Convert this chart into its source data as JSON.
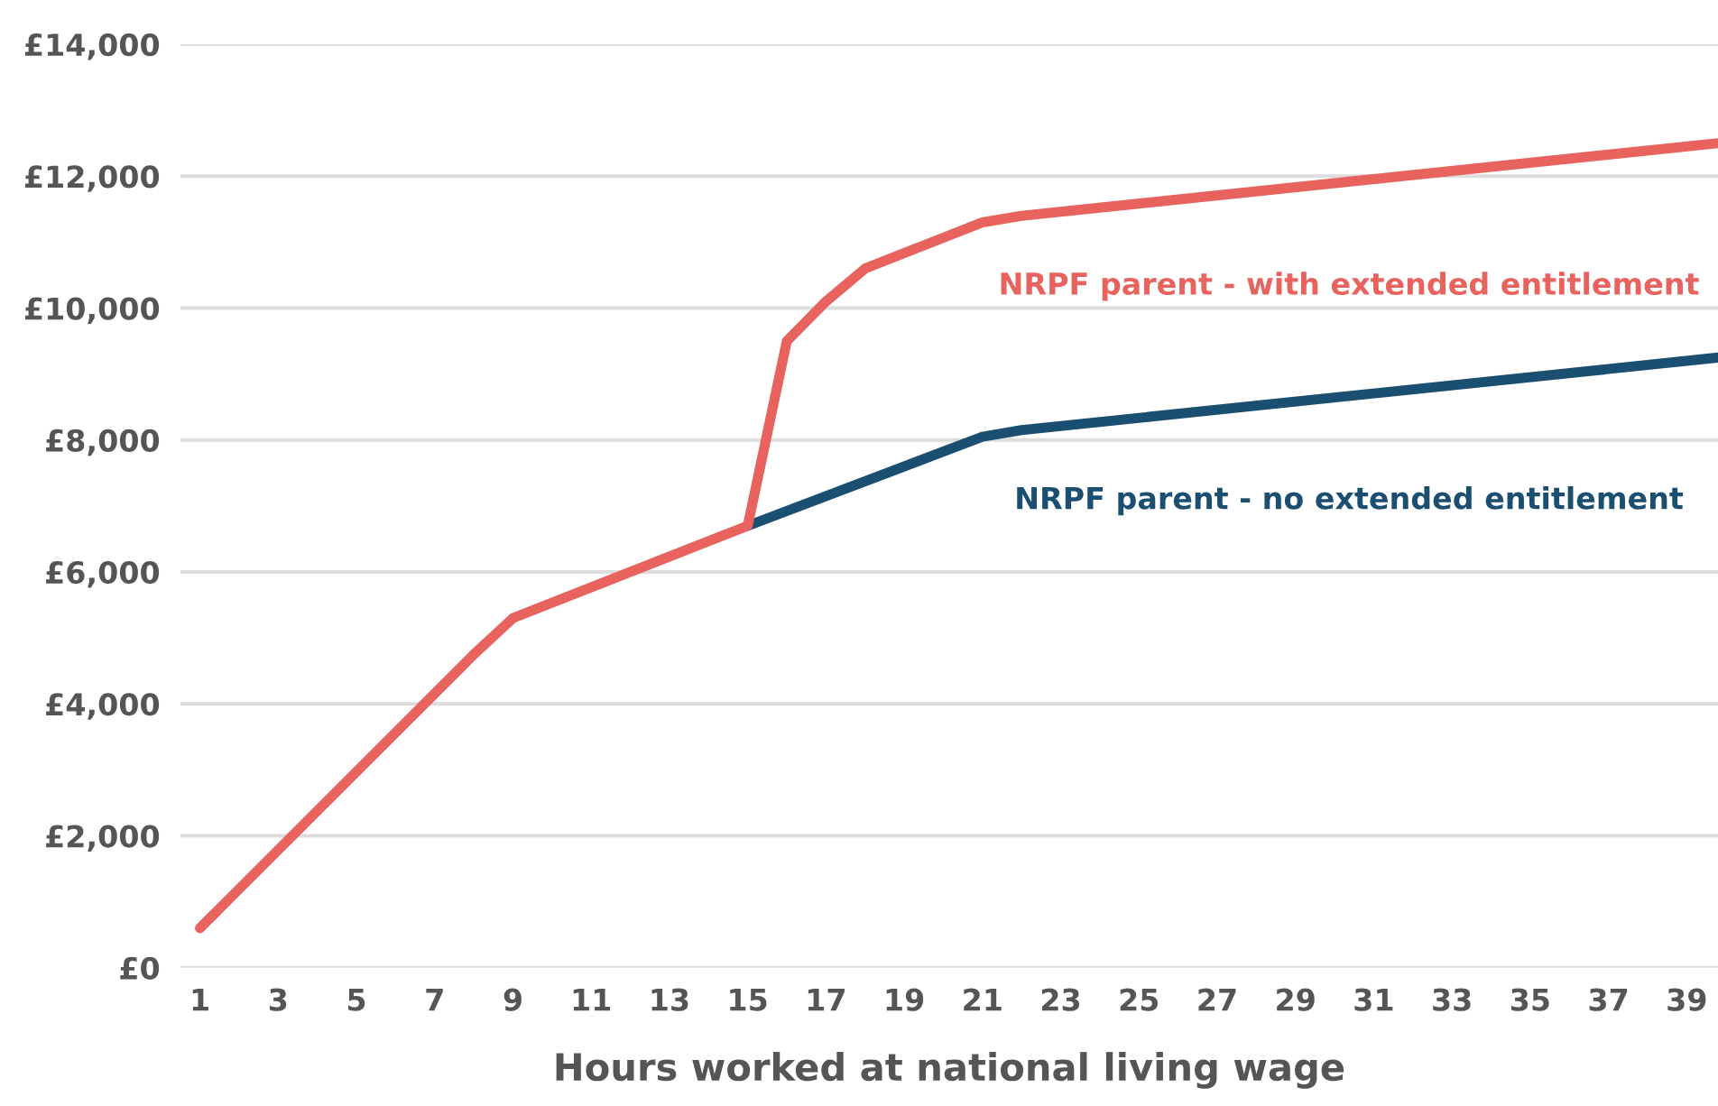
{
  "chart_data": {
    "type": "line",
    "xlabel": "Hours worked at national living wage",
    "x": [
      1,
      8,
      9,
      15,
      16,
      17,
      18,
      21,
      22,
      39.8
    ],
    "series": [
      {
        "name": "NRPF parent - no extended entitlement",
        "color": "#1b4f72",
        "x": [
          15,
          21,
          22,
          39.8
        ],
        "values": [
          6700,
          8050,
          8150,
          9250
        ]
      },
      {
        "name": "NRPF parent - with extended entitlement",
        "color": "#e8625e",
        "values": [
          600,
          4750,
          5300,
          6700,
          9500,
          10100,
          10600,
          11300,
          11400,
          12500
        ]
      }
    ],
    "xlim": [
      0.5,
      39.8
    ],
    "ylim": [
      0,
      14000
    ],
    "xticks": [
      1,
      3,
      5,
      7,
      9,
      11,
      13,
      15,
      17,
      19,
      21,
      23,
      25,
      27,
      29,
      31,
      33,
      35,
      37,
      39
    ],
    "yticks": [
      {
        "value": 0,
        "label": "£0"
      },
      {
        "value": 2000,
        "label": "£2,000"
      },
      {
        "value": 4000,
        "label": "£4,000"
      },
      {
        "value": 6000,
        "label": "£6,000"
      },
      {
        "value": 8000,
        "label": "£8,000"
      },
      {
        "value": 10000,
        "label": "£10,000"
      },
      {
        "value": 12000,
        "label": "£12,000"
      },
      {
        "value": 14000,
        "label": "£14,000"
      }
    ],
    "grid": "y",
    "marker": "none",
    "line_style": "solid",
    "legend": false
  }
}
